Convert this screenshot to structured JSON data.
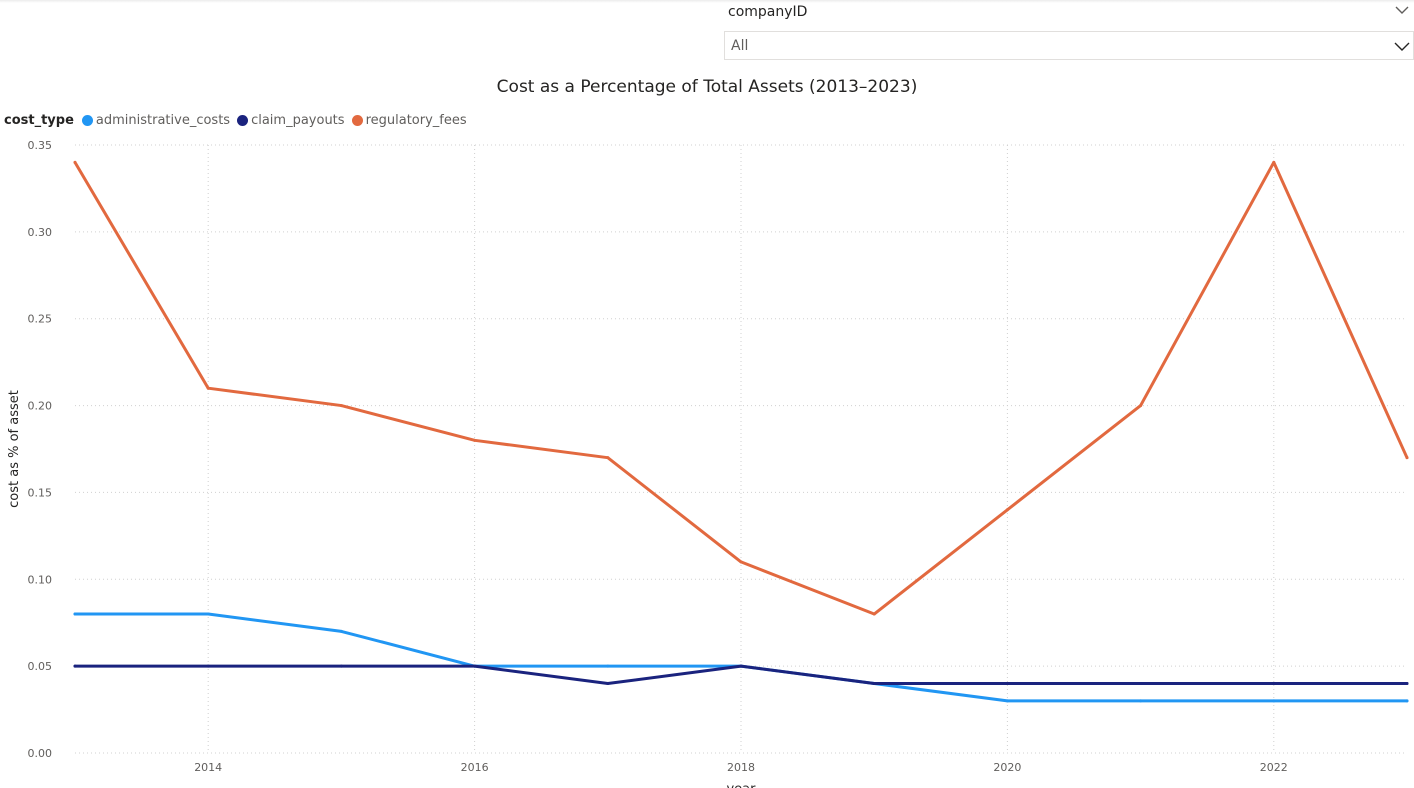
{
  "slicer": {
    "title": "companyID",
    "selected": "All",
    "header_icon": "chevron-down-icon",
    "dropdown_icon": "chevron-down-icon"
  },
  "chart_data": {
    "type": "line",
    "title": "Cost as a Percentage of Total Assets (2013–2023)",
    "xlabel": "year",
    "ylabel": "cost as % of asset",
    "legend_title": "cost_type",
    "legend_position": "top-left",
    "grid": true,
    "x": [
      2013,
      2014,
      2015,
      2016,
      2017,
      2018,
      2019,
      2020,
      2021,
      2022,
      2023
    ],
    "xticks": [
      2014,
      2016,
      2018,
      2020,
      2022
    ],
    "xlim": [
      2013,
      2023
    ],
    "ylim": [
      0,
      0.35
    ],
    "yticks": [
      "0.00",
      "0.05",
      "0.10",
      "0.15",
      "0.20",
      "0.25",
      "0.30",
      "0.35"
    ],
    "series": [
      {
        "name": "administrative_costs",
        "color": "#2196f3",
        "values": [
          0.08,
          0.08,
          0.07,
          0.05,
          0.05,
          0.05,
          0.04,
          0.03,
          0.03,
          0.03,
          0.03
        ]
      },
      {
        "name": "claim_payouts",
        "color": "#1a237e",
        "values": [
          0.05,
          0.05,
          0.05,
          0.05,
          0.04,
          0.05,
          0.04,
          0.04,
          0.04,
          0.04,
          0.04
        ]
      },
      {
        "name": "regulatory_fees",
        "color": "#e2693f",
        "values": [
          0.34,
          0.21,
          0.2,
          0.18,
          0.17,
          0.11,
          0.08,
          0.14,
          0.2,
          0.34,
          0.17
        ]
      }
    ]
  }
}
